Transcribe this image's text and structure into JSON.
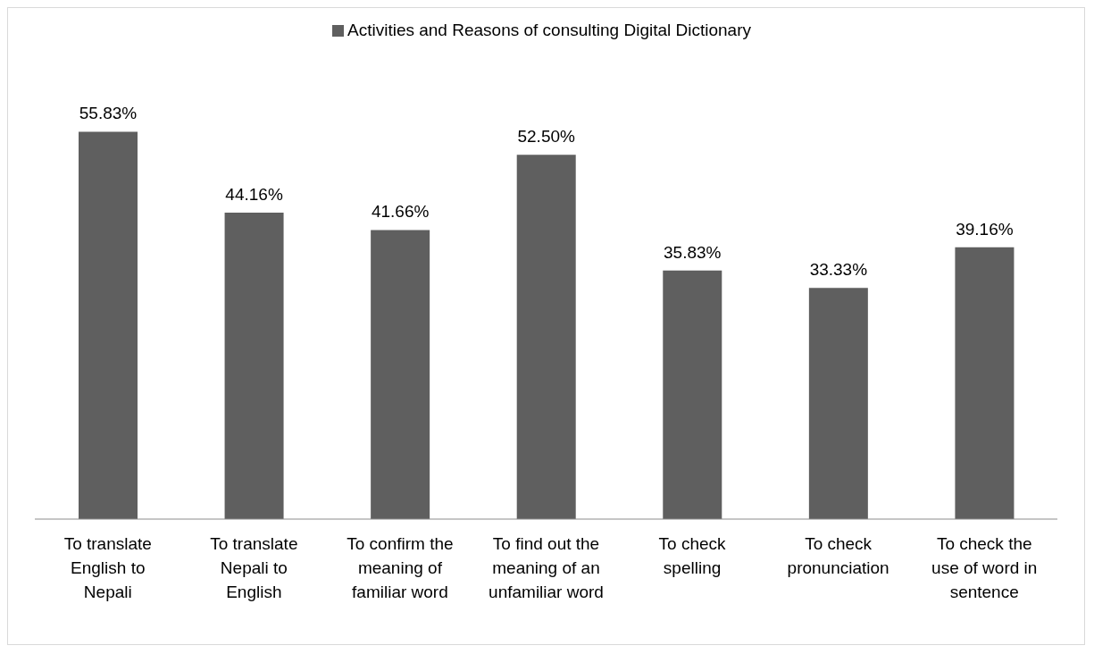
{
  "chart_data": {
    "type": "bar",
    "categories": [
      "To translate English to Nepali",
      "To translate Nepali to English",
      "To confirm the meaning of familiar word",
      "To find out the meaning of an unfamiliar word",
      "To check spelling",
      "To check pronunciation",
      "To check the use of word in sentence"
    ],
    "series": [
      {
        "name": "Activities and Reasons of consulting Digital Dictionary",
        "color": "#5f5f5f",
        "values": [
          55.83,
          44.16,
          41.66,
          52.5,
          35.83,
          33.33,
          39.16
        ],
        "value_labels": [
          "55.83%",
          "44.16%",
          "41.66%",
          "52.50%",
          "35.83%",
          "33.33%",
          "39.16%"
        ]
      }
    ],
    "legend": "top",
    "grid": false,
    "tick_labels": "x"
  }
}
